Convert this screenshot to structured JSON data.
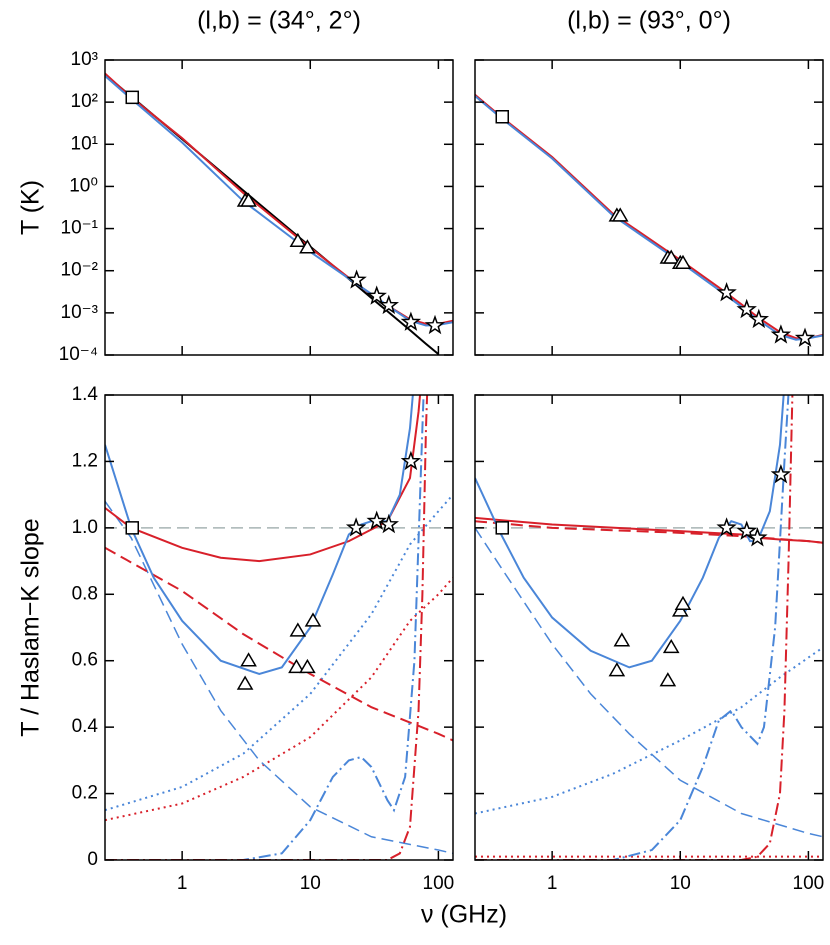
{
  "xlabel": "ν (GHz)",
  "chart_data": [
    {
      "type": "line",
      "title": "(l,b) = (34°, 2°)",
      "ylabel": "T (K)",
      "xlog": true,
      "ylog": true,
      "xlim": [
        0.25,
        130
      ],
      "ylim": [
        0.0001,
        1000
      ],
      "xticks": [
        1,
        10,
        100
      ],
      "xtick_labels": false,
      "ytick_labels": true,
      "yticks": [
        {
          "value": 0.0001,
          "label": "10⁻⁴"
        },
        {
          "value": 0.001,
          "label": "10⁻³"
        },
        {
          "value": 0.01,
          "label": "10⁻²"
        },
        {
          "value": 0.1,
          "label": "10⁻¹"
        },
        {
          "value": 1,
          "label": "10⁰"
        },
        {
          "value": 10,
          "label": "10¹"
        },
        {
          "value": 100,
          "label": "10²"
        },
        {
          "value": 1000,
          "label": "10³"
        }
      ],
      "series": [
        {
          "color": "#000000",
          "style": "solid",
          "linewidth": 2,
          "x": [
            0.25,
            1,
            3,
            10,
            20,
            30,
            40,
            60,
            80,
            100
          ],
          "values": [
            453,
            13.3,
            0.8,
            0.0373,
            0.0064,
            0.00226,
            0.00109,
            0.00039,
            0.000184,
            0.000105
          ]
        },
        {
          "color": "#d8202a",
          "style": "solid",
          "linewidth": 2,
          "x": [
            0.25,
            0.4,
            1,
            3,
            10,
            20,
            30,
            40,
            60,
            80,
            100,
            130
          ],
          "values": [
            480,
            130,
            14,
            0.7,
            0.035,
            0.0068,
            0.0027,
            0.0015,
            0.0007,
            0.00055,
            0.00055,
            0.00065
          ]
        },
        {
          "color": "#4a86d8",
          "style": "solid",
          "linewidth": 2,
          "x": [
            0.25,
            0.4,
            1,
            3,
            10,
            20,
            30,
            40,
            60,
            80,
            100,
            130
          ],
          "values": [
            420,
            120,
            11,
            0.45,
            0.028,
            0.0065,
            0.0028,
            0.0015,
            0.00065,
            0.0005,
            0.00052,
            0.0006
          ]
        },
        {
          "marker": "square",
          "x": [
            0.408
          ],
          "values": [
            130
          ]
        },
        {
          "marker": "triangle",
          "x": [
            3.1,
            3.3,
            8,
            9.5
          ],
          "values": [
            0.45,
            0.45,
            0.05,
            0.035
          ]
        },
        {
          "marker": "star",
          "x": [
            23,
            33,
            41,
            61,
            94
          ],
          "values": [
            0.006,
            0.0025,
            0.0015,
            0.0006,
            0.0005
          ]
        }
      ]
    },
    {
      "type": "line",
      "title": "(l,b) = (93°, 0°)",
      "xlog": true,
      "ylog": true,
      "xlim": [
        0.25,
        130
      ],
      "ylim": [
        0.0001,
        1000
      ],
      "xticks": [
        1,
        10,
        100
      ],
      "xtick_labels": false,
      "ytick_labels": false,
      "yticks": [
        0.0001,
        0.001,
        0.01,
        0.1,
        1,
        10,
        100,
        1000
      ],
      "series": [
        {
          "color": "#d8202a",
          "style": "solid",
          "linewidth": 2,
          "x": [
            0.25,
            0.4,
            1,
            3,
            10,
            20,
            30,
            40,
            60,
            80,
            100,
            130
          ],
          "values": [
            150,
            45,
            5,
            0.22,
            0.018,
            0.004,
            0.0016,
            0.0008,
            0.00035,
            0.00025,
            0.00025,
            0.0003
          ]
        },
        {
          "color": "#4a86d8",
          "style": "solid",
          "linewidth": 2,
          "x": [
            0.25,
            0.4,
            1,
            3,
            10,
            20,
            30,
            40,
            60,
            80,
            100,
            130
          ],
          "values": [
            140,
            42,
            4.6,
            0.2,
            0.016,
            0.0035,
            0.0014,
            0.0007,
            0.0003,
            0.00023,
            0.00025,
            0.00029
          ]
        },
        {
          "marker": "square",
          "x": [
            0.408
          ],
          "values": [
            45
          ]
        },
        {
          "marker": "triangle",
          "x": [
            3.2,
            3.4,
            8,
            8.5,
            10,
            10.5
          ],
          "values": [
            0.2,
            0.2,
            0.02,
            0.02,
            0.015,
            0.015
          ]
        },
        {
          "marker": "star",
          "x": [
            23,
            33,
            41,
            61,
            94
          ],
          "values": [
            0.003,
            0.0012,
            0.0007,
            0.0003,
            0.00025
          ]
        }
      ]
    },
    {
      "type": "line",
      "ylabel": "T / Haslam−K slope",
      "xlog": true,
      "ylog": false,
      "xlim": [
        0.25,
        130
      ],
      "ylim": [
        0,
        1.4
      ],
      "xticks": [
        1,
        10,
        100
      ],
      "xtick_labels": true,
      "ytick_labels": true,
      "yticks": [
        0,
        0.2,
        0.4,
        0.6,
        0.8,
        {
          "value": 1,
          "label": "1.0"
        },
        1.2,
        1.4
      ],
      "series": [
        {
          "color": "#a8b4b4",
          "style": "dashed",
          "linewidth": 1.5,
          "x": [
            0.25,
            130
          ],
          "values": [
            1,
            1
          ]
        },
        {
          "color": "#4a86d8",
          "style": "dotted",
          "linewidth": 2,
          "x": [
            0.25,
            1,
            3,
            10,
            30,
            60,
            100,
            130
          ],
          "values": [
            0.15,
            0.22,
            0.32,
            0.5,
            0.74,
            0.95,
            1.05,
            1.1
          ]
        },
        {
          "color": "#d8202a",
          "style": "dotted",
          "linewidth": 2,
          "x": [
            0.25,
            1,
            3,
            10,
            30,
            60,
            100,
            130
          ],
          "values": [
            0.12,
            0.17,
            0.25,
            0.37,
            0.55,
            0.72,
            0.8,
            0.85
          ]
        },
        {
          "color": "#4a86d8",
          "style": "dashed",
          "linewidth": 1.5,
          "x": [
            0.25,
            0.4,
            1,
            2,
            4,
            10,
            30,
            100,
            130
          ],
          "values": [
            1.08,
            0.97,
            0.65,
            0.45,
            0.3,
            0.16,
            0.07,
            0.03,
            0.02
          ]
        },
        {
          "color": "#d8202a",
          "style": "dashed",
          "linewidth": 2,
          "x": [
            0.25,
            1,
            3,
            10,
            30,
            100,
            130
          ],
          "values": [
            0.94,
            0.81,
            0.68,
            0.56,
            0.46,
            0.38,
            0.36
          ]
        },
        {
          "color": "#4a86d8",
          "style": "dashdot",
          "linewidth": 2,
          "x": [
            0.25,
            3,
            6,
            10,
            15,
            20,
            25,
            30,
            40,
            45,
            55,
            65,
            75,
            80
          ],
          "values": [
            0,
            0,
            0.02,
            0.12,
            0.25,
            0.3,
            0.31,
            0.28,
            0.18,
            0.15,
            0.25,
            0.6,
            1.3,
            1.6
          ]
        },
        {
          "color": "#d8202a",
          "style": "dashdot",
          "linewidth": 2,
          "x": [
            0.25,
            40,
            50,
            60,
            70,
            75,
            80,
            85
          ],
          "values": [
            0,
            0,
            0.02,
            0.1,
            0.45,
            0.8,
            1.3,
            1.6
          ]
        },
        {
          "color": "#d8202a",
          "style": "solid",
          "linewidth": 2,
          "x": [
            0.25,
            0.4,
            1,
            2,
            4,
            10,
            20,
            40,
            60,
            70,
            80
          ],
          "values": [
            1.06,
            1,
            0.94,
            0.91,
            0.9,
            0.92,
            0.96,
            1.02,
            1.15,
            1.35,
            1.6
          ]
        },
        {
          "color": "#4a86d8",
          "style": "solid",
          "linewidth": 2,
          "x": [
            0.25,
            0.4,
            0.6,
            1,
            2,
            4,
            6,
            10,
            15,
            20,
            25,
            30,
            40,
            50,
            60,
            70
          ],
          "values": [
            1.25,
            1,
            0.85,
            0.72,
            0.6,
            0.56,
            0.58,
            0.7,
            0.86,
            0.98,
            1.01,
            1.02,
            1.02,
            1.1,
            1.3,
            1.6
          ]
        },
        {
          "marker": "square",
          "x": [
            0.408
          ],
          "values": [
            1
          ]
        },
        {
          "marker": "triangle",
          "x": [
            3.1,
            3.3,
            7.8,
            8,
            9.5,
            10.5
          ],
          "values": [
            0.53,
            0.6,
            0.58,
            0.69,
            0.58,
            0.72
          ]
        },
        {
          "marker": "star",
          "x": [
            22.8,
            33,
            41,
            61
          ],
          "values": [
            1,
            1.02,
            1.01,
            1.2
          ]
        }
      ]
    },
    {
      "type": "line",
      "xlog": true,
      "ylog": false,
      "xlim": [
        0.25,
        130
      ],
      "ylim": [
        0,
        1.4
      ],
      "xticks": [
        1,
        10,
        100
      ],
      "xtick_labels": true,
      "ytick_labels": false,
      "yticks": [
        0,
        0.2,
        0.4,
        0.6,
        0.8,
        1,
        1.2,
        1.4
      ],
      "series": [
        {
          "color": "#a8b4b4",
          "style": "dashed",
          "linewidth": 1.5,
          "x": [
            0.25,
            130
          ],
          "values": [
            1,
            1
          ]
        },
        {
          "color": "#4a86d8",
          "style": "dotted",
          "linewidth": 2,
          "x": [
            0.25,
            1,
            3,
            10,
            30,
            60,
            130
          ],
          "values": [
            0.14,
            0.19,
            0.26,
            0.36,
            0.46,
            0.55,
            0.64
          ]
        },
        {
          "color": "#d8202a",
          "style": "dotted",
          "linewidth": 2,
          "x": [
            0.25,
            10,
            130
          ],
          "values": [
            0.01,
            0.01,
            0.01
          ]
        },
        {
          "color": "#4a86d8",
          "style": "dashed",
          "linewidth": 1.5,
          "x": [
            0.25,
            0.4,
            1,
            2,
            4,
            10,
            30,
            100,
            130
          ],
          "values": [
            1,
            0.88,
            0.65,
            0.5,
            0.38,
            0.24,
            0.14,
            0.08,
            0.07
          ]
        },
        {
          "color": "#d8202a",
          "style": "dashed",
          "linewidth": 2,
          "x": [
            0.25,
            1,
            10,
            30,
            100,
            130
          ],
          "values": [
            1.02,
            1,
            0.985,
            0.975,
            0.96,
            0.955
          ]
        },
        {
          "color": "#4a86d8",
          "style": "dashdot",
          "linewidth": 2,
          "x": [
            0.25,
            3,
            6,
            10,
            15,
            20,
            25,
            30,
            40,
            45,
            55,
            65,
            75
          ],
          "values": [
            0,
            0,
            0.03,
            0.12,
            0.28,
            0.42,
            0.45,
            0.4,
            0.35,
            0.4,
            0.7,
            1.2,
            1.6
          ]
        },
        {
          "color": "#d8202a",
          "style": "dashdot",
          "linewidth": 2,
          "x": [
            0.25,
            30,
            40,
            50,
            60,
            65,
            70,
            75,
            80
          ],
          "values": [
            0,
            0,
            0.01,
            0.05,
            0.2,
            0.45,
            0.9,
            1.4,
            1.6
          ]
        },
        {
          "color": "#d8202a",
          "style": "solid",
          "linewidth": 2,
          "x": [
            0.25,
            1,
            10,
            30,
            40,
            60,
            100,
            130
          ],
          "values": [
            1.03,
            1.01,
            0.99,
            0.98,
            0.97,
            0.965,
            0.96,
            0.955
          ]
        },
        {
          "color": "#4a86d8",
          "style": "solid",
          "linewidth": 2,
          "x": [
            0.25,
            0.4,
            0.6,
            1,
            2,
            4,
            6,
            10,
            15,
            20,
            25,
            30,
            35,
            40,
            50,
            60,
            70
          ],
          "values": [
            1.15,
            0.98,
            0.85,
            0.73,
            0.63,
            0.58,
            0.6,
            0.72,
            0.85,
            0.97,
            1.02,
            1.01,
            0.96,
            0.96,
            1.05,
            1.25,
            1.6
          ]
        },
        {
          "marker": "square",
          "x": [
            0.408
          ],
          "values": [
            1
          ]
        },
        {
          "marker": "triangle",
          "x": [
            3.2,
            3.5,
            8,
            8.5,
            10,
            10.5
          ],
          "values": [
            0.57,
            0.66,
            0.54,
            0.64,
            0.75,
            0.77
          ]
        },
        {
          "marker": "star",
          "x": [
            23,
            33,
            40,
            61
          ],
          "values": [
            1,
            0.99,
            0.97,
            1.16
          ]
        }
      ]
    }
  ]
}
